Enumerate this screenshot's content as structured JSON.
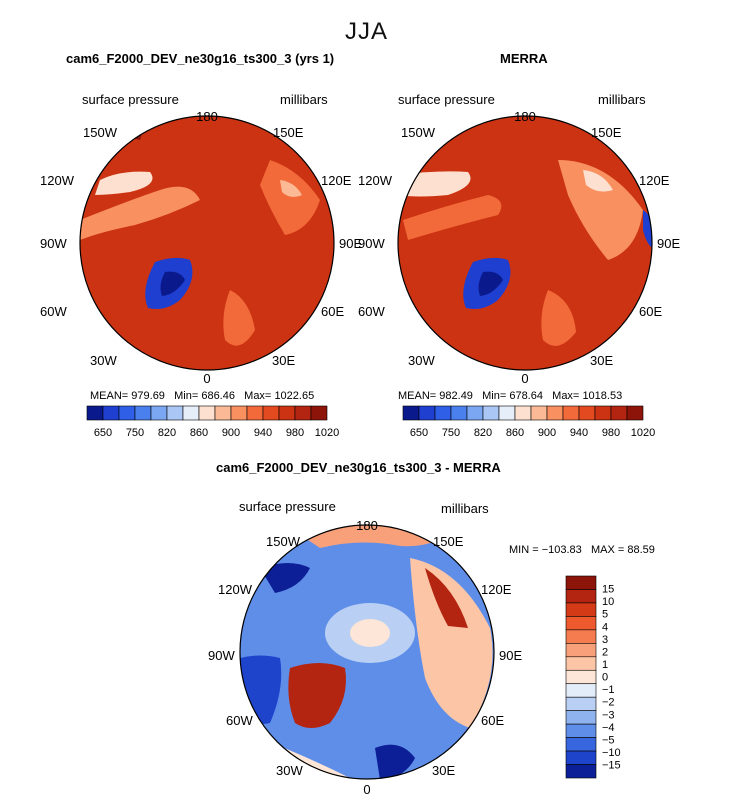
{
  "season": "JJA",
  "variable_label": "surface pressure",
  "units_label": "millibars",
  "lon_labels": [
    "180",
    "150E",
    "120E",
    "90E",
    "60E",
    "30E",
    "0",
    "30W",
    "60W",
    "90W",
    "120W",
    "150W"
  ],
  "panels": [
    {
      "title": "cam6_F2000_DEV_ne30g16_ts300_3 (yrs 1)",
      "mean_label": "MEAN=",
      "mean": "979.69",
      "min_label": "Min=",
      "min": "686.46",
      "max_label": "Max=",
      "max": "1022.65"
    },
    {
      "title": "MERRA",
      "mean_label": "MEAN=",
      "mean": "982.49",
      "min_label": "Min=",
      "min": "678.64",
      "max_label": "Max=",
      "max": "1018.53"
    }
  ],
  "diff": {
    "title": "cam6_F2000_DEV_ne30g16_ts300_3 - MERRA",
    "min_label": "MIN =",
    "min": "−103.83",
    "max_label": "MAX =",
    "max": "88.59"
  },
  "colorbar": {
    "labels": [
      "650",
      "750",
      "820",
      "860",
      "900",
      "940",
      "980",
      "1020"
    ],
    "colors": [
      "#0a1a8c",
      "#1f3fd0",
      "#2e5fe6",
      "#4a80ee",
      "#7aa6f2",
      "#a9c6f5",
      "#e6eef9",
      "#fde0cf",
      "#fbb996",
      "#f8905f",
      "#f26a3a",
      "#e34a1f",
      "#cc3312",
      "#b32510",
      "#8c1409"
    ]
  },
  "diff_colorbar": {
    "labels": [
      "15",
      "10",
      "5",
      "4",
      "3",
      "2",
      "1",
      "0",
      "−1",
      "−2",
      "−3",
      "−4",
      "−5",
      "−10",
      "−15"
    ],
    "colors": [
      "#8c1409",
      "#b32510",
      "#d53a17",
      "#ee5a2e",
      "#f47c4f",
      "#f8a07a",
      "#fbc5a6",
      "#fde6d7",
      "#e3edf9",
      "#b9d0f4",
      "#8fb3ef",
      "#5f8ee9",
      "#3766df",
      "#1e44cc",
      "#0c1f96"
    ]
  }
}
